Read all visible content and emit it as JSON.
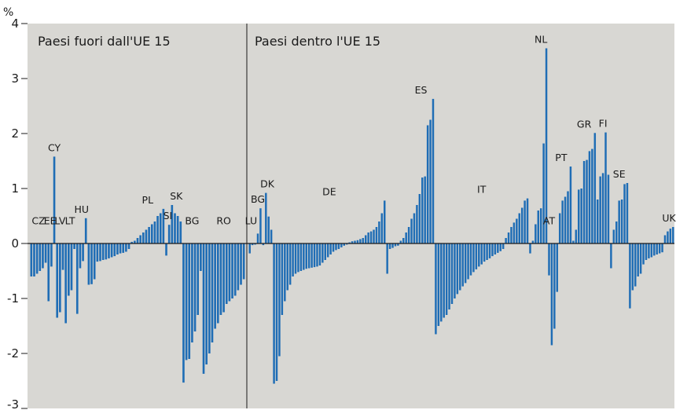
{
  "chart_data": {
    "type": "bar",
    "unit_label": "%",
    "ylim": [
      -3,
      4
    ],
    "yticks": [
      "4",
      "3",
      "2",
      "1",
      "0",
      "-1",
      "-2",
      "-3"
    ],
    "ytick_values": [
      4,
      3,
      2,
      1,
      0,
      -1,
      -2,
      -3
    ],
    "bar_color": "#1f6db5",
    "background_color": "#d8d7d3",
    "grid": false,
    "panels": [
      {
        "title": "Paesi fuori dall'UE 15",
        "countries": [
          {
            "label": "CZ",
            "values": [
              -0.6,
              -0.6,
              -0.55,
              -0.5,
              -0.45,
              -0.35
            ]
          },
          {
            "label": "EE",
            "values": [
              -1.05,
              -0.42
            ]
          },
          {
            "label": "CY",
            "values": [
              1.58
            ]
          },
          {
            "label": "LV",
            "values": [
              -1.35,
              -1.25,
              -0.48
            ]
          },
          {
            "label": "LT",
            "values": [
              -1.45,
              -0.95,
              -0.85,
              -0.1
            ]
          },
          {
            "label": "HU",
            "values": [
              -1.28,
              -0.45,
              -0.32,
              0.46
            ]
          },
          {
            "label": "",
            "values": [
              -0.75,
              -0.74,
              -0.65,
              -0.33,
              -0.32,
              -0.3,
              -0.29,
              -0.27,
              -0.25,
              -0.23,
              -0.2,
              -0.18,
              -0.17,
              -0.15,
              -0.1
            ]
          },
          {
            "label": "PL",
            "values": [
              0.03,
              0.05,
              0.1,
              0.15,
              0.2,
              0.25,
              0.3,
              0.35,
              0.4,
              0.5,
              0.55,
              0.63
            ]
          },
          {
            "label": "SI",
            "values": [
              -0.22,
              0.34
            ]
          },
          {
            "label": "SK",
            "values": [
              0.7,
              0.55,
              0.5,
              0.4
            ]
          },
          {
            "label": "BG",
            "values": [
              -2.53,
              -2.12,
              -2.1,
              -1.8,
              -1.6,
              -1.3,
              -0.5
            ]
          },
          {
            "label": "RO",
            "values": [
              -2.37,
              -2.2,
              -2.0,
              -1.8,
              -1.55,
              -1.45,
              -1.3,
              -1.25,
              -1.1,
              -1.05,
              -1.0,
              -0.95,
              -0.85,
              -0.75,
              -0.65
            ]
          }
        ]
      },
      {
        "title": "Paesi dentro l'UE 15",
        "countries": [
          {
            "label": "LU",
            "values": [
              -0.18,
              -0.03
            ]
          },
          {
            "label": "BG",
            "values": [
              -0.02,
              0.18,
              0.64
            ]
          },
          {
            "label": "DK",
            "values": [
              -0.03,
              0.92,
              0.49,
              0.25
            ]
          },
          {
            "label": "DE",
            "values": [
              -2.55,
              -2.5,
              -2.05,
              -1.3,
              -1.05,
              -0.85,
              -0.75,
              -0.6,
              -0.55,
              -0.52,
              -0.5,
              -0.48,
              -0.46,
              -0.45,
              -0.44,
              -0.43,
              -0.42,
              -0.4,
              -0.35,
              -0.3,
              -0.25,
              -0.2,
              -0.15,
              -0.12,
              -0.1,
              -0.07,
              -0.04,
              -0.02,
              0.02,
              0.04,
              0.05,
              0.06,
              0.08,
              0.1,
              0.15,
              0.2,
              0.22,
              0.25,
              0.3,
              0.4,
              0.55,
              0.78
            ]
          },
          {
            "label": "",
            "values": [
              -0.55,
              -0.1,
              -0.08,
              -0.05,
              -0.04,
              0.05,
              0.1,
              0.2
            ]
          },
          {
            "label": "ES",
            "values": [
              0.3,
              0.45,
              0.55,
              0.7,
              0.9,
              1.2,
              1.22,
              2.15,
              2.25,
              2.63
            ]
          },
          {
            "label": "IT",
            "values": [
              -1.65,
              -1.5,
              -1.42,
              -1.35,
              -1.3,
              -1.2,
              -1.1,
              -1.0,
              -0.92,
              -0.85,
              -0.78,
              -0.72,
              -0.65,
              -0.58,
              -0.52,
              -0.47,
              -0.42,
              -0.38,
              -0.33,
              -0.3,
              -0.27,
              -0.23,
              -0.2,
              -0.17,
              -0.14,
              -0.1,
              0.1,
              0.2,
              0.3,
              0.38,
              0.45,
              0.55,
              0.65,
              0.78,
              0.82
            ]
          },
          {
            "label": "",
            "values": [
              -0.18,
              0.05
            ]
          },
          {
            "label": "NL",
            "values": [
              0.35,
              0.6,
              0.64,
              1.82,
              3.55
            ]
          },
          {
            "label": "AT",
            "values": [
              -0.58
            ]
          },
          {
            "label": "PT",
            "values": [
              -1.85,
              -1.55,
              -0.88,
              0.55,
              0.78,
              0.85,
              0.95,
              1.4
            ]
          },
          {
            "label": "GR",
            "values": [
              0.05,
              0.25,
              0.98,
              1.0,
              1.5,
              1.52,
              1.68,
              1.72,
              2.01
            ]
          },
          {
            "label": "FI",
            "values": [
              0.8,
              1.22,
              1.28,
              2.02,
              1.25
            ]
          },
          {
            "label": "SE",
            "values": [
              -0.45,
              0.25,
              0.4,
              0.78,
              0.8,
              1.08,
              1.1
            ]
          },
          {
            "label": "",
            "values": [
              -1.18,
              -0.85,
              -0.78,
              -0.6,
              -0.55,
              -0.38,
              -0.3,
              -0.27,
              -0.25,
              -0.22,
              -0.2,
              -0.18,
              -0.16
            ]
          },
          {
            "label": "UK",
            "values": [
              0.15,
              0.22,
              0.27,
              0.3
            ]
          }
        ]
      }
    ]
  }
}
